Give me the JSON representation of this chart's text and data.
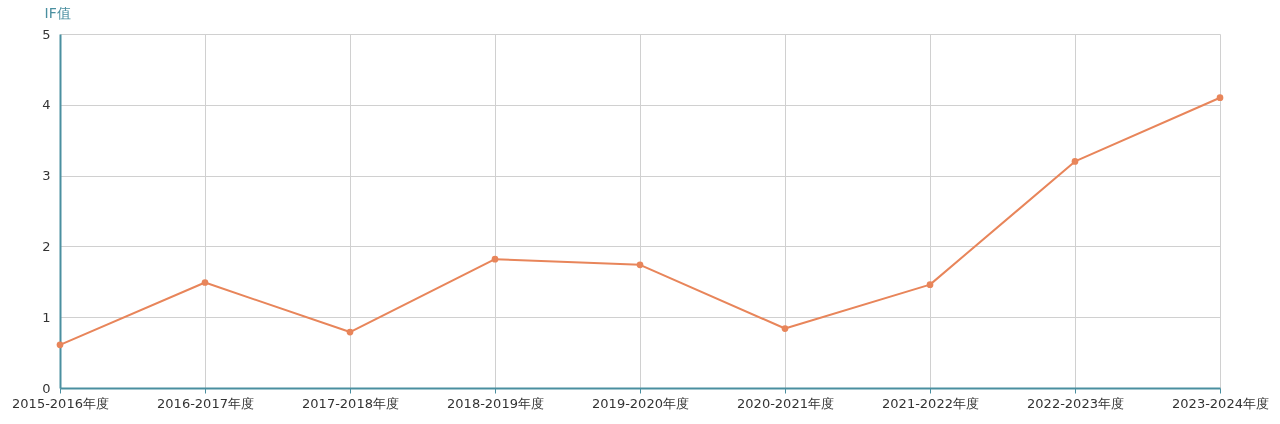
{
  "chart_data": {
    "type": "line",
    "ylabel": "IF值",
    "categories": [
      "2015-2016年度",
      "2016-2017年度",
      "2017-2018年度",
      "2018-2019年度",
      "2019-2020年度",
      "2020-2021年度",
      "2021-2022年度",
      "2022-2023年度",
      "2023-2024年度"
    ],
    "series": [
      {
        "color": "#e8855a",
        "values": [
          0.61,
          1.49,
          0.79,
          1.82,
          1.74,
          0.84,
          1.46,
          3.2,
          4.1
        ]
      }
    ],
    "ylim": [
      0,
      5
    ],
    "yticks": [
      0,
      1,
      2,
      3,
      4,
      5
    ],
    "grid": true,
    "marker": "circle",
    "line_style": "solid",
    "legend": false
  }
}
